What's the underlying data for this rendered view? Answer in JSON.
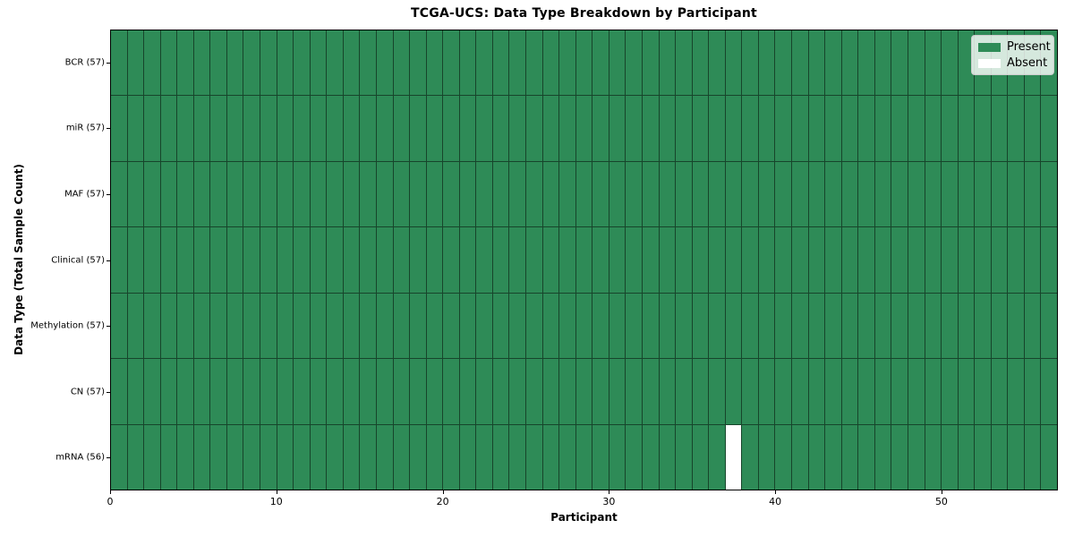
{
  "chart_data": {
    "type": "heatmap",
    "title": "TCGA-UCS: Data Type Breakdown by Participant",
    "xlabel": "Participant",
    "ylabel": "Data Type (Total Sample Count)",
    "n_participants": 57,
    "x_range": [
      0,
      57
    ],
    "x_ticks": [
      0,
      10,
      20,
      30,
      40,
      50
    ],
    "rows": [
      {
        "data_type": "BCR",
        "label": "BCR (57)",
        "total_samples": 57,
        "present_count": 57,
        "absent_participant_indices": []
      },
      {
        "data_type": "miR",
        "label": "miR (57)",
        "total_samples": 57,
        "present_count": 57,
        "absent_participant_indices": []
      },
      {
        "data_type": "MAF",
        "label": "MAF (57)",
        "total_samples": 57,
        "present_count": 57,
        "absent_participant_indices": []
      },
      {
        "data_type": "Clinical",
        "label": "Clinical (57)",
        "total_samples": 57,
        "present_count": 57,
        "absent_participant_indices": []
      },
      {
        "data_type": "Methylation",
        "label": "Methylation (57)",
        "total_samples": 57,
        "present_count": 57,
        "absent_participant_indices": []
      },
      {
        "data_type": "CN",
        "label": "CN (57)",
        "total_samples": 57,
        "present_count": 57,
        "absent_participant_indices": []
      },
      {
        "data_type": "mRNA",
        "label": "mRNA (56)",
        "total_samples": 56,
        "present_count": 56,
        "absent_participant_indices": [
          37
        ]
      }
    ],
    "legend_items": [
      {
        "label": "Present",
        "color": "#2e8b57"
      },
      {
        "label": "Absent",
        "color": "#ffffff"
      }
    ],
    "legend_position": "upper right",
    "colors": {
      "present": "#2e8b57",
      "absent": "#ffffff",
      "gridline": "#17452b",
      "spine": "#000000",
      "background": "#ffffff"
    }
  }
}
